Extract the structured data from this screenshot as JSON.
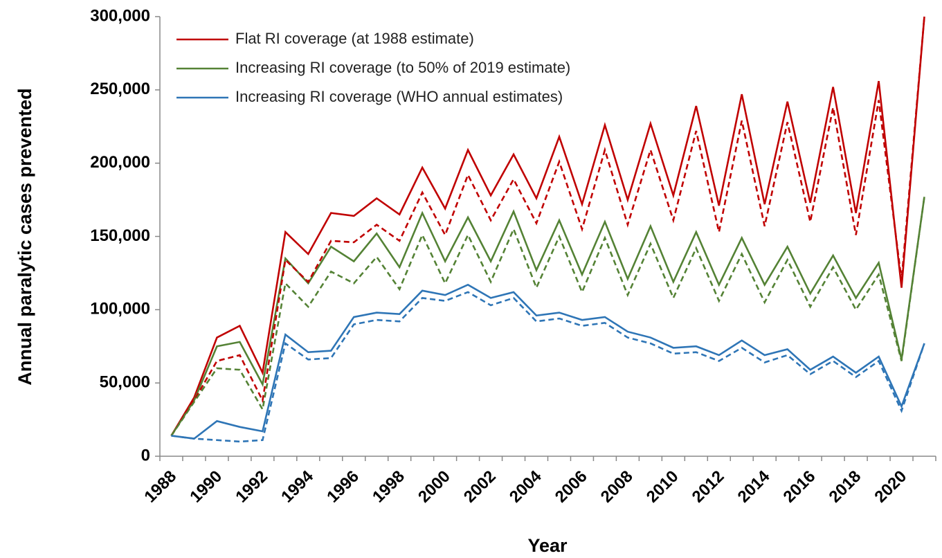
{
  "chart_data": {
    "type": "line",
    "x_label": "Year",
    "y_label": "Annual paralytic cases prevented",
    "categories": [
      "1988",
      null,
      "1990",
      null,
      "1992",
      null,
      "1994",
      null,
      "1996",
      null,
      "1998",
      null,
      "2000",
      null,
      "2002",
      null,
      "2004",
      null,
      "2006",
      null,
      "2008",
      null,
      "2010",
      null,
      "2012",
      null,
      "2014",
      null,
      "2016",
      null,
      "2018",
      null,
      "2020",
      null
    ],
    "series": [
      {
        "name": "Flat RI coverage (at 1988 estimate)",
        "color": "#c00000",
        "dashed": false,
        "values": [
          14000,
          40000,
          81000,
          89000,
          57000,
          153000,
          138000,
          166000,
          164000,
          176000,
          165000,
          197000,
          169000,
          209000,
          178000,
          206000,
          176000,
          218000,
          172000,
          226000,
          175000,
          227000,
          178000,
          239000,
          171000,
          247000,
          172000,
          242000,
          173000,
          252000,
          166000,
          256000,
          115000,
          300000
        ]
      },
      {
        "name": "Increasing RI coverage (to 50% of 2019 estimate)",
        "color": "#548235",
        "dashed": false,
        "values": [
          14000,
          38000,
          75000,
          78000,
          49000,
          135000,
          118000,
          143000,
          133000,
          152000,
          129000,
          166000,
          133000,
          163000,
          133000,
          167000,
          127000,
          161000,
          124000,
          160000,
          121000,
          157000,
          119000,
          153000,
          117000,
          149000,
          117000,
          143000,
          111000,
          137000,
          108000,
          132000,
          66000,
          177000
        ]
      },
      {
        "name": "Increasing RI coverage (WHO annual estimates)",
        "color": "#2e75b6",
        "dashed": false,
        "values": [
          14000,
          12000,
          24000,
          20000,
          17000,
          83000,
          71000,
          72000,
          95000,
          98000,
          97000,
          113000,
          110000,
          117000,
          108000,
          112000,
          96000,
          98000,
          93000,
          95000,
          85000,
          81000,
          74000,
          75000,
          69000,
          79000,
          69000,
          73000,
          59000,
          68000,
          57000,
          68000,
          34000,
          77000
        ]
      },
      {
        "color": "#c00000",
        "dashed": true,
        "values": [
          14000,
          38000,
          65000,
          69000,
          38000,
          134000,
          119000,
          147000,
          146000,
          158000,
          147000,
          180000,
          151000,
          192000,
          161000,
          189000,
          159000,
          201000,
          155000,
          209000,
          158000,
          209000,
          161000,
          222000,
          153000,
          229000,
          157000,
          228000,
          160000,
          238000,
          151000,
          243000,
          120000,
          300000
        ]
      },
      {
        "color": "#548235",
        "dashed": true,
        "values": [
          14000,
          37000,
          60000,
          59000,
          32000,
          118000,
          102000,
          126000,
          118000,
          136000,
          114000,
          151000,
          118000,
          151000,
          119000,
          155000,
          115000,
          150000,
          112000,
          149000,
          110000,
          145000,
          108000,
          142000,
          106000,
          138000,
          105000,
          134000,
          102000,
          129000,
          100000,
          124000,
          65000,
          177000
        ]
      },
      {
        "color": "#2e75b6",
        "dashed": true,
        "values": [
          14000,
          12000,
          11000,
          10000,
          11000,
          77000,
          66000,
          67000,
          90000,
          93000,
          92000,
          108000,
          106000,
          112000,
          103000,
          108000,
          92000,
          94000,
          89000,
          91000,
          81000,
          77000,
          70000,
          71000,
          65000,
          74000,
          64000,
          69000,
          56000,
          65000,
          54000,
          65000,
          31000,
          77000
        ]
      }
    ],
    "ylim": [
      0,
      300000
    ],
    "yticks": [
      0,
      {
        "value": 50000,
        "label": "50,000"
      },
      {
        "value": 100000,
        "label": "100,000"
      },
      {
        "value": 150000,
        "label": "150,000"
      },
      {
        "value": 200000,
        "label": "200,000"
      },
      {
        "value": 250000,
        "label": "250,000"
      },
      {
        "value": 300000,
        "label": "300,000"
      }
    ],
    "grid": false,
    "legend": "upper-left"
  }
}
